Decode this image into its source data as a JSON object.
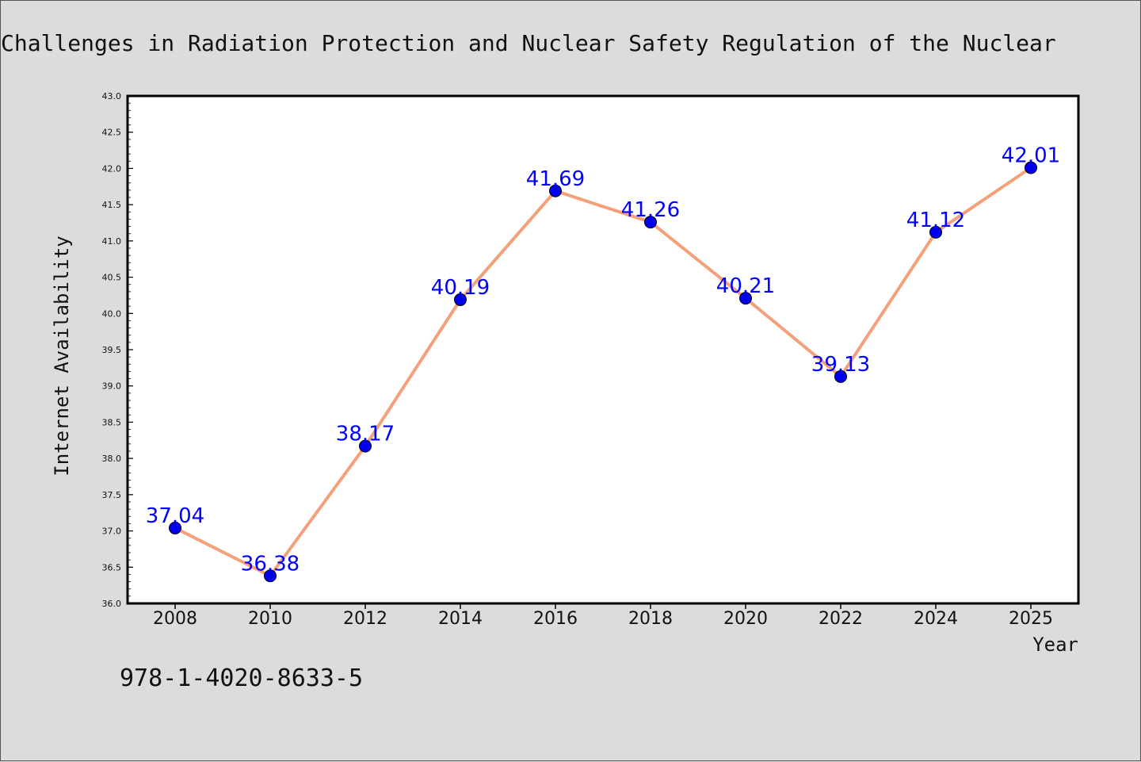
{
  "page": {
    "isbn": "978-1-4020-8633-5"
  },
  "colors": {
    "background": "#dcdcdc",
    "plot_bg": "#ffffff",
    "line": "#f4a07a",
    "marker": "#0000ee",
    "data_label": "#0000ff"
  },
  "chart_data": {
    "type": "line",
    "title": "Challenges in Radiation Protection and Nuclear Safety Regulation of the Nuclear",
    "xlabel": "Year",
    "ylabel": "Internet Availability",
    "categories": [
      "2008",
      "2010",
      "2012",
      "2014",
      "2016",
      "2018",
      "2020",
      "2022",
      "2024",
      "2025"
    ],
    "series": [
      {
        "values": [
          37.04,
          36.38,
          38.17,
          40.19,
          41.69,
          41.26,
          40.21,
          39.13,
          41.12,
          42.01
        ],
        "labels": [
          "37.04",
          "36.38",
          "38.17",
          "40.19",
          "41.69",
          "41.26",
          "40.21",
          "39.13",
          "41.12",
          "42.01"
        ]
      }
    ],
    "ylim": [
      36.0,
      43.0
    ],
    "yticks": [
      "36.0",
      "36.5",
      "37.0",
      "37.5",
      "38.0",
      "38.5",
      "39.0",
      "39.5",
      "40.0",
      "40.5",
      "41.0",
      "41.5",
      "42.0",
      "42.5",
      "43.0"
    ],
    "grid": false,
    "legend": "none"
  }
}
